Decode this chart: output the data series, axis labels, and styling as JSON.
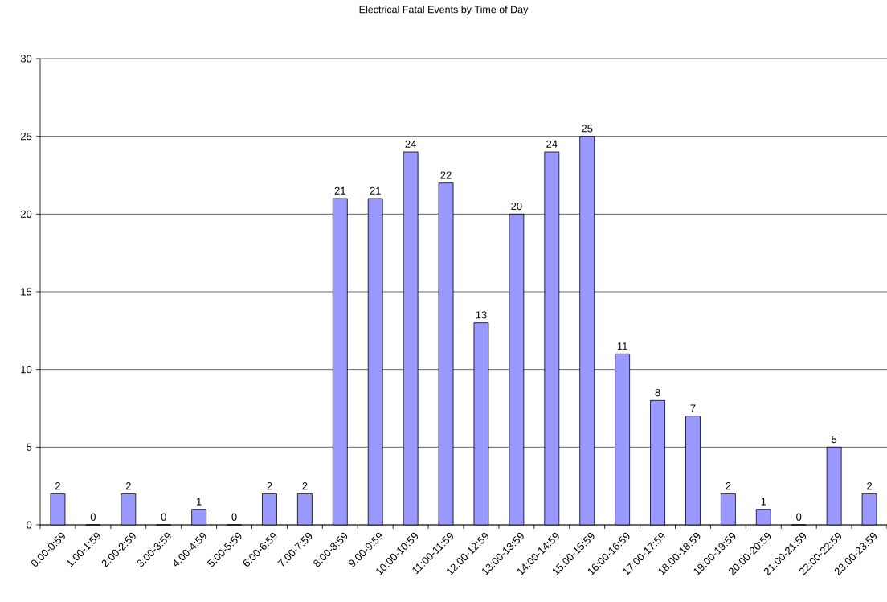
{
  "chart_data": {
    "type": "bar",
    "title": "Electrical Fatal Events by Time of Day",
    "categories": [
      "0:00-0:59",
      "1:00-1:59",
      "2:00-2:59",
      "3:00-3:59",
      "4:00-4:59",
      "5:00-5:59",
      "6:00-6:59",
      "7:00-7:59",
      "8:00-8:59",
      "9:00-9:59",
      "10:00-10:59",
      "11:00-11:59",
      "12:00-12:59",
      "13:00-13:59",
      "14:00-14:59",
      "15:00-15:59",
      "16:00-16:59",
      "17:00-17:59",
      "18:00-18:59",
      "19:00-19:59",
      "20:00-20:59",
      "21:00-21:59",
      "22:00-22:59",
      "23:00-23:59"
    ],
    "values": [
      2,
      0,
      2,
      0,
      1,
      0,
      2,
      2,
      21,
      21,
      24,
      22,
      13,
      20,
      24,
      25,
      11,
      8,
      7,
      2,
      1,
      0,
      5,
      2
    ],
    "color": "#9999ff",
    "ylim": [
      0,
      30
    ],
    "yticks": [
      0,
      5,
      10,
      15,
      20,
      25,
      30
    ],
    "grid": "y",
    "data_labels": true
  }
}
